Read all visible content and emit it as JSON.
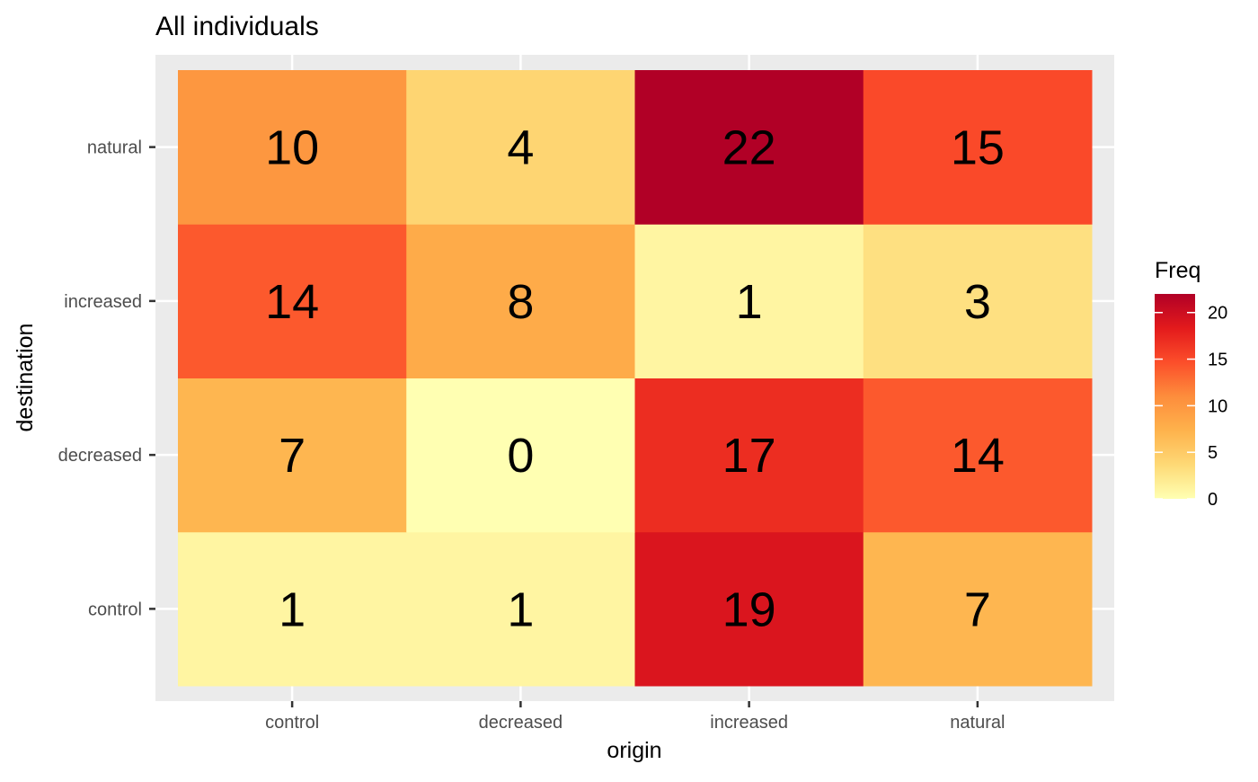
{
  "chart_data": {
    "type": "heatmap",
    "title": "All individuals",
    "xlabel": "origin",
    "ylabel": "destination",
    "x_categories": [
      "control",
      "decreased",
      "increased",
      "natural"
    ],
    "y_categories": [
      "control",
      "decreased",
      "increased",
      "natural"
    ],
    "cells": [
      {
        "x": "control",
        "y": "control",
        "value": 1
      },
      {
        "x": "decreased",
        "y": "control",
        "value": 1
      },
      {
        "x": "increased",
        "y": "control",
        "value": 19
      },
      {
        "x": "natural",
        "y": "control",
        "value": 7
      },
      {
        "x": "control",
        "y": "decreased",
        "value": 7
      },
      {
        "x": "decreased",
        "y": "decreased",
        "value": 0
      },
      {
        "x": "increased",
        "y": "decreased",
        "value": 17
      },
      {
        "x": "natural",
        "y": "decreased",
        "value": 14
      },
      {
        "x": "control",
        "y": "increased",
        "value": 14
      },
      {
        "x": "decreased",
        "y": "increased",
        "value": 8
      },
      {
        "x": "increased",
        "y": "increased",
        "value": 1
      },
      {
        "x": "natural",
        "y": "increased",
        "value": 3
      },
      {
        "x": "control",
        "y": "natural",
        "value": 10
      },
      {
        "x": "decreased",
        "y": "natural",
        "value": 4
      },
      {
        "x": "increased",
        "y": "natural",
        "value": 22
      },
      {
        "x": "natural",
        "y": "natural",
        "value": 15
      }
    ],
    "legend": {
      "title": "Freq",
      "ticks": [
        0,
        5,
        10,
        15,
        20
      ],
      "range": [
        0,
        22
      ],
      "placement": "right"
    },
    "color_scale": [
      "#ffffb2",
      "#fed976",
      "#feb24c",
      "#fd8d3c",
      "#fc4e2a",
      "#e31a1c",
      "#b10026"
    ],
    "panel_background": "#ebebeb",
    "grid": true
  }
}
